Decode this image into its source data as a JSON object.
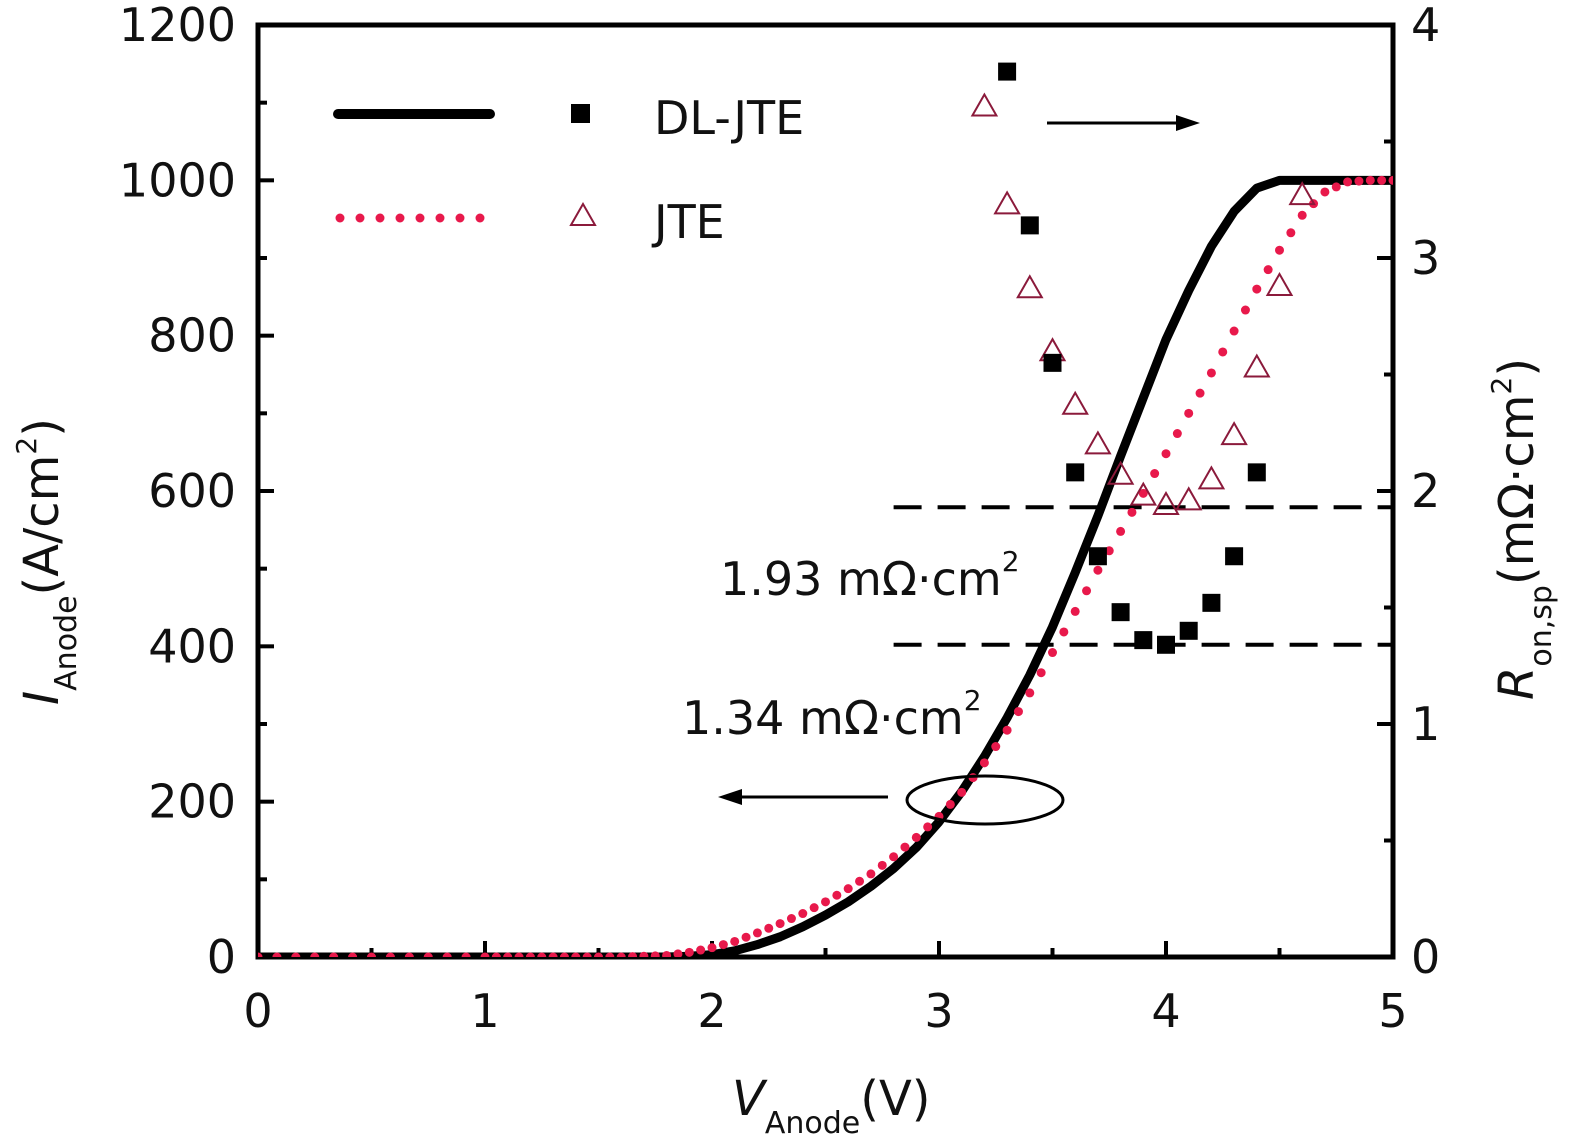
{
  "chart_data": {
    "type": "line",
    "x_axis": {
      "label": "V",
      "label_subscript": "Anode",
      "label_unit": "(V)",
      "range": [
        0,
        5
      ],
      "ticks": [
        "0",
        "1",
        "2",
        "3",
        "4",
        "5"
      ]
    },
    "y_axis_left": {
      "label": "I",
      "label_subscript": "Anode",
      "label_unit": "(A/cm",
      "label_unit_superscript": "2",
      "label_unit_close": ")",
      "range": [
        0,
        1200
      ],
      "ticks": [
        "0",
        "200",
        "400",
        "600",
        "800",
        "1000",
        "1200"
      ]
    },
    "y_axis_right": {
      "label": "R",
      "label_subscript": "on,sp",
      "label_unit": "(mΩ·cm",
      "label_unit_superscript": "2",
      "label_unit_close": ")",
      "range": [
        0,
        4
      ],
      "ticks": [
        "0",
        "1",
        "2",
        "3",
        "4"
      ]
    },
    "legend": {
      "placement": "top-left",
      "entries": [
        {
          "label": "DL-JTE",
          "line_style": "solid",
          "marker": "filled-square",
          "color": "#000000"
        },
        {
          "label": "JTE",
          "line_style": "dotted",
          "marker": "open-triangle",
          "color": "#e8194b",
          "marker_color": "#8b1a3b"
        }
      ]
    },
    "series": [
      {
        "label": "DL-JTE",
        "kind": "I-V",
        "axis": "left",
        "x": [
          0,
          1,
          1.8,
          1.9,
          2.0,
          2.1,
          2.2,
          2.3,
          2.4,
          2.5,
          2.6,
          2.7,
          2.8,
          2.9,
          3.0,
          3.1,
          3.2,
          3.3,
          3.4,
          3.5,
          3.6,
          3.7,
          3.8,
          3.9,
          4.0,
          4.1,
          4.2,
          4.3,
          4.4,
          4.5,
          5.0
        ],
        "y": [
          0,
          0,
          0,
          1,
          3,
          8,
          16,
          26,
          39,
          54,
          71,
          91,
          114,
          141,
          174,
          213,
          258,
          308,
          363,
          425,
          495,
          568,
          645,
          720,
          795,
          858,
          915,
          960,
          990,
          1000,
          1000
        ]
      },
      {
        "label": "JTE",
        "kind": "I-V",
        "axis": "left",
        "x": [
          0,
          1,
          1.6,
          1.7,
          1.8,
          1.9,
          2.0,
          2.1,
          2.2,
          2.3,
          2.4,
          2.5,
          2.6,
          2.7,
          2.8,
          2.9,
          3.0,
          3.1,
          3.2,
          3.3,
          3.4,
          3.5,
          3.6,
          3.7,
          3.8,
          3.9,
          4.0,
          4.1,
          4.2,
          4.3,
          4.4,
          4.5,
          4.6,
          4.7,
          4.8,
          4.9,
          5.0
        ],
        "y": [
          0,
          0,
          0,
          1,
          2,
          6,
          12,
          20,
          31,
          43,
          56,
          71,
          88,
          107,
          129,
          154,
          181,
          212,
          250,
          292,
          340,
          392,
          445,
          498,
          548,
          597,
          648,
          700,
          752,
          806,
          860,
          910,
          955,
          985,
          998,
          1000,
          1000
        ]
      },
      {
        "label": "DL-JTE",
        "kind": "Ron,sp",
        "axis": "right",
        "x": [
          3.3,
          3.4,
          3.5,
          3.6,
          3.7,
          3.8,
          3.9,
          4.0,
          4.1,
          4.2,
          4.3,
          4.4
        ],
        "y": [
          3.8,
          3.14,
          2.55,
          2.08,
          1.72,
          1.48,
          1.36,
          1.34,
          1.4,
          1.52,
          1.72,
          2.08
        ]
      },
      {
        "label": "JTE",
        "kind": "Ron,sp",
        "axis": "right",
        "x": [
          3.2,
          3.3,
          3.4,
          3.5,
          3.6,
          3.7,
          3.8,
          3.9,
          4.0,
          4.1,
          4.2,
          4.3,
          4.4,
          4.5,
          4.6
        ],
        "y": [
          3.65,
          3.23,
          2.87,
          2.6,
          2.37,
          2.2,
          2.07,
          1.98,
          1.94,
          1.96,
          2.05,
          2.24,
          2.53,
          2.88,
          3.27
        ]
      }
    ],
    "reference_lines": [
      {
        "axis": "right",
        "value": 1.93,
        "style": "dashed",
        "x_from": 2.8,
        "x_to": 5.0
      },
      {
        "axis": "right",
        "value": 1.34,
        "style": "dashed",
        "x_from": 2.8,
        "x_to": 5.0
      }
    ],
    "annotations": [
      {
        "text": "1.93 mΩ·cm",
        "superscript": "2"
      },
      {
        "text": "1.34 mΩ·cm",
        "superscript": "2"
      }
    ]
  }
}
